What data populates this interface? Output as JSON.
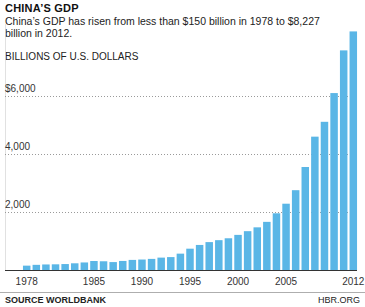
{
  "chart_data": {
    "type": "bar",
    "title": "CHINA’S GDP",
    "subtitle": "China’s GDP has risen from less than $150 billion in 1978 to $8,227 billion in 2012.",
    "y_label": "BILLIONS OF U.S. DOLLARS",
    "source": "SOURCE WORLDBANK",
    "credit": "HBR.ORG",
    "categories": [
      "1978",
      null,
      null,
      null,
      null,
      null,
      null,
      "1985",
      null,
      null,
      null,
      null,
      "1990",
      null,
      null,
      null,
      null,
      "1995",
      null,
      null,
      null,
      null,
      "2000",
      null,
      null,
      null,
      null,
      "2005",
      null,
      null,
      null,
      null,
      null,
      null,
      "2012"
    ],
    "values": [
      150,
      178,
      191,
      196,
      205,
      231,
      260,
      310,
      301,
      273,
      312,
      348,
      361,
      383,
      427,
      445,
      564,
      735,
      864,
      962,
      1029,
      1094,
      1211,
      1339,
      1471,
      1660,
      1955,
      2286,
      2752,
      3552,
      4598,
      5110,
      6101,
      7573,
      8227
    ],
    "color": "#5ab6e6",
    "ylim": [
      0,
      8500
    ],
    "yticks": [
      {
        "value": 2000,
        "label": "2,000"
      },
      {
        "value": 4000,
        "label": "4,000"
      },
      {
        "value": 6000,
        "label": "$6,000"
      }
    ],
    "grid": true
  }
}
